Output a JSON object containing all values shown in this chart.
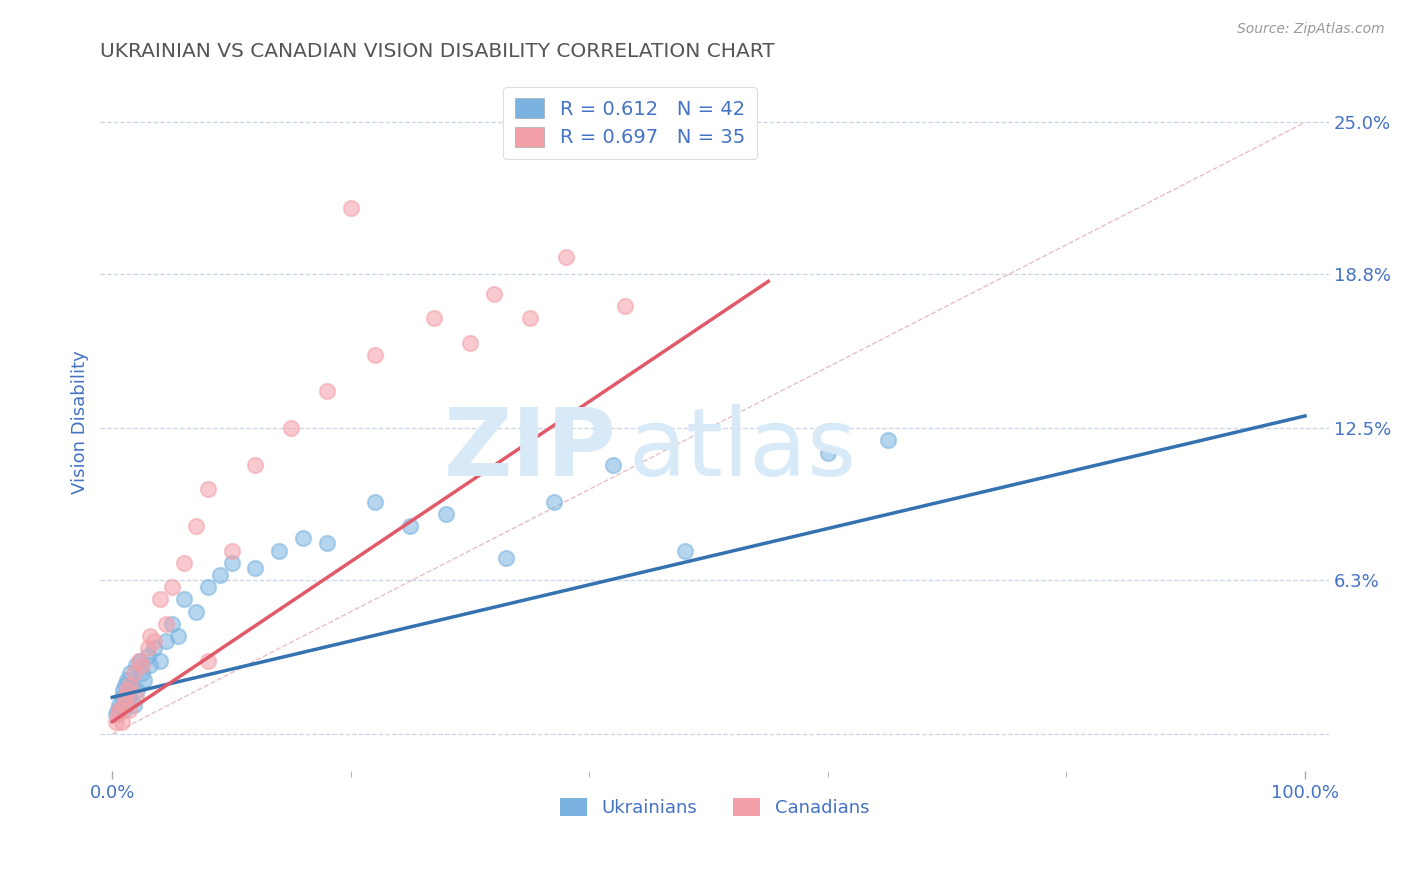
{
  "title": "UKRAINIAN VS CANADIAN VISION DISABILITY CORRELATION CHART",
  "source": "Source: ZipAtlas.com",
  "ylabel": "Vision Disability",
  "xlim": [
    0,
    100
  ],
  "ylim": [
    0,
    25
  ],
  "blue_color": "#7ab3e0",
  "pink_color": "#f4a0a8",
  "blue_line_color": "#3572b0",
  "pink_line_color": "#e05a6a",
  "axis_color": "#4472C4",
  "background_color": "#ffffff",
  "grid_color": "#c8d4e8",
  "legend_R_blue": "0.612",
  "legend_N_blue": "42",
  "legend_R_pink": "0.697",
  "legend_N_pink": "35",
  "legend_label_blue": "Ukrainians",
  "legend_label_pink": "Canadians",
  "title_color": "#555555",
  "watermark_color": "#d8eaf8",
  "source_color": "#999999",
  "blue_trend_x0": 0,
  "blue_trend_y0": 1.5,
  "blue_trend_x1": 100,
  "blue_trend_y1": 13.0,
  "pink_trend_x0": 0,
  "pink_trend_y0": 0.5,
  "pink_trend_x1": 55,
  "pink_trend_y1": 18.5,
  "diag_x0": 0,
  "diag_y0": 0,
  "diag_x1": 100,
  "diag_y1": 25,
  "ukrainians_x": [
    0.3,
    0.5,
    0.6,
    0.8,
    0.9,
    1.0,
    1.1,
    1.2,
    1.4,
    1.5,
    1.6,
    1.8,
    2.0,
    2.1,
    2.3,
    2.5,
    2.7,
    3.0,
    3.2,
    3.5,
    4.0,
    4.5,
    5.0,
    5.5,
    6.0,
    7.0,
    8.0,
    9.0,
    10.0,
    12.0,
    14.0,
    16.0,
    18.0,
    22.0,
    25.0,
    28.0,
    33.0,
    37.0,
    42.0,
    48.0,
    60.0,
    65.0
  ],
  "ukrainians_y": [
    0.8,
    1.0,
    1.2,
    1.5,
    1.8,
    1.0,
    2.0,
    2.2,
    1.5,
    2.5,
    2.0,
    1.2,
    2.8,
    1.8,
    3.0,
    2.5,
    2.2,
    3.2,
    2.8,
    3.5,
    3.0,
    3.8,
    4.5,
    4.0,
    5.5,
    5.0,
    6.0,
    6.5,
    7.0,
    6.8,
    7.5,
    8.0,
    7.8,
    9.5,
    8.5,
    9.0,
    7.2,
    9.5,
    11.0,
    7.5,
    11.5,
    12.0
  ],
  "canadians_x": [
    0.3,
    0.5,
    0.6,
    0.8,
    1.0,
    1.1,
    1.2,
    1.4,
    1.5,
    1.8,
    2.0,
    2.2,
    2.5,
    3.0,
    3.2,
    3.5,
    4.0,
    4.5,
    5.0,
    6.0,
    7.0,
    8.0,
    10.0,
    12.0,
    15.0,
    18.0,
    22.0,
    27.0,
    32.0,
    38.0,
    43.0,
    35.0,
    20.0,
    30.0,
    8.0
  ],
  "canadians_y": [
    0.5,
    0.8,
    1.0,
    0.5,
    1.2,
    1.5,
    1.8,
    1.0,
    2.0,
    2.5,
    1.5,
    3.0,
    2.8,
    3.5,
    4.0,
    3.8,
    5.5,
    4.5,
    6.0,
    7.0,
    8.5,
    10.0,
    7.5,
    11.0,
    12.5,
    14.0,
    15.5,
    17.0,
    18.0,
    19.5,
    17.5,
    17.0,
    21.5,
    16.0,
    3.0
  ]
}
